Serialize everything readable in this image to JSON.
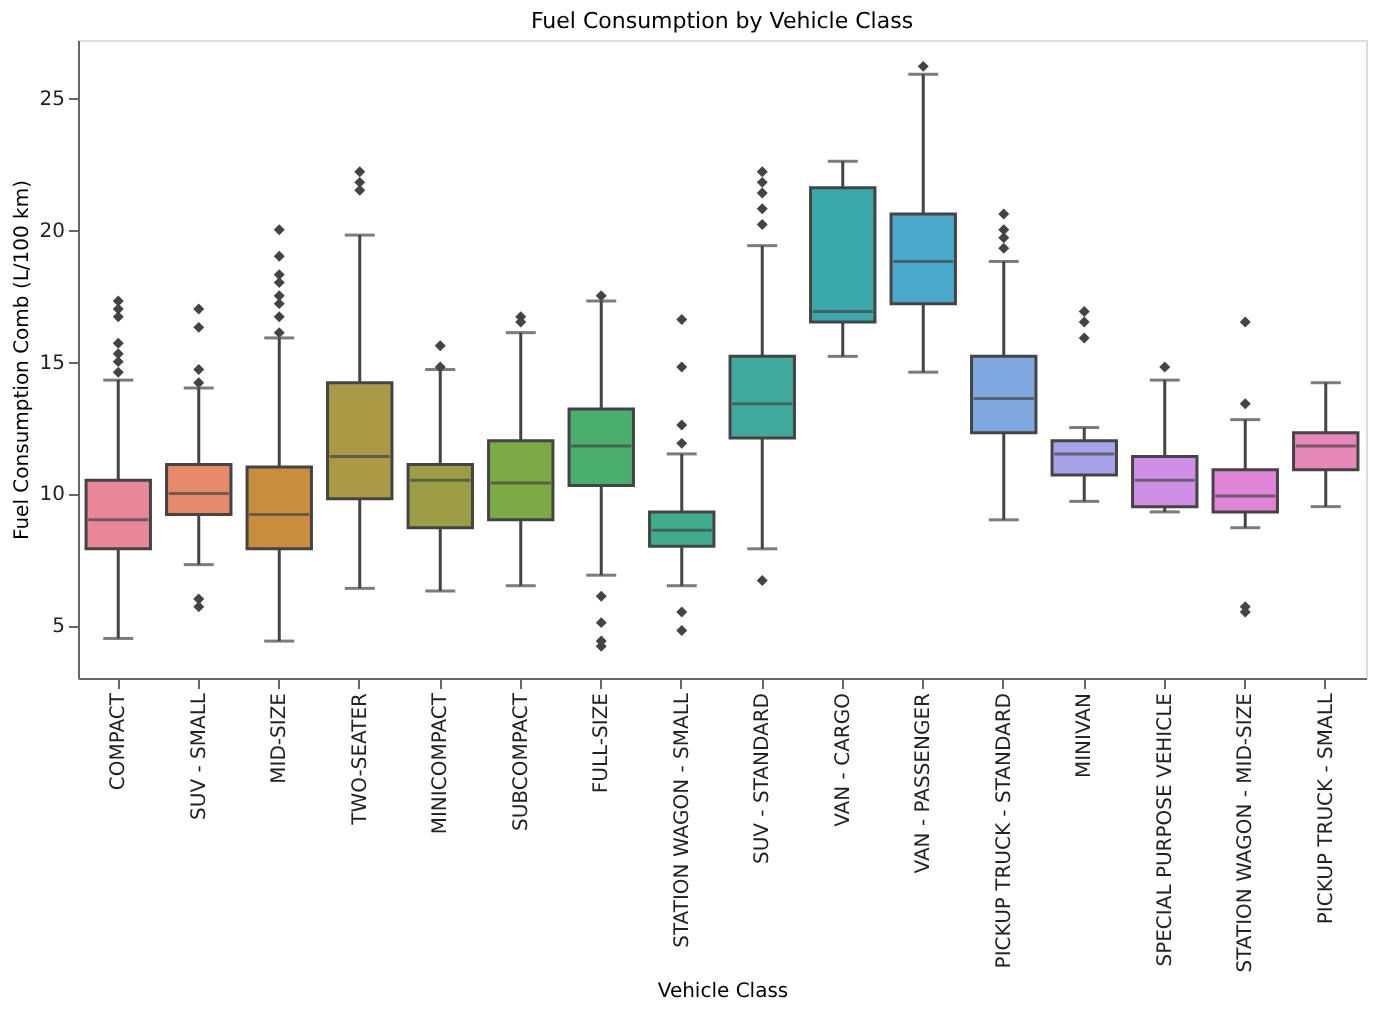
{
  "chart_data": {
    "type": "box",
    "title": "Fuel Consumption by Vehicle Class",
    "xlabel": "Vehicle Class",
    "ylabel": "Fuel Consumption Comb (L/100 km)",
    "categories": [
      "COMPACT",
      "SUV - SMALL",
      "MID-SIZE",
      "TWO-SEATER",
      "MINICOMPACT",
      "SUBCOMPACT",
      "FULL-SIZE",
      "STATION WAGON - SMALL",
      "SUV - STANDARD",
      "VAN - CARGO",
      "VAN - PASSENGER",
      "PICKUP TRUCK - STANDARD",
      "MINIVAN",
      "SPECIAL PURPOSE VEHICLE",
      "STATION WAGON - MID-SIZE",
      "PICKUP TRUCK - SMALL"
    ],
    "colors": [
      "#e8879a",
      "#e48a6b",
      "#c98d3e",
      "#aa9a45",
      "#9c9d44",
      "#7eaa45",
      "#4aae6c",
      "#3fad8c",
      "#40aa9d",
      "#3aa8aa",
      "#4aa8cc",
      "#80a8e0",
      "#a8a2e8",
      "#cf8fe6",
      "#e084d8",
      "#e888b8"
    ],
    "boxes": [
      {
        "low": 4.5,
        "q1": 7.9,
        "median": 9.0,
        "q3": 10.5,
        "high": 14.3,
        "outliers": [
          17.3,
          17.0,
          16.7,
          15.7,
          15.3,
          15.0,
          14.6
        ]
      },
      {
        "low": 7.3,
        "q1": 9.2,
        "median": 10.0,
        "q3": 11.1,
        "high": 14.0,
        "outliers": [
          17.0,
          16.3,
          14.7,
          14.2,
          6.0,
          5.7
        ]
      },
      {
        "low": 4.4,
        "q1": 7.9,
        "median": 9.2,
        "q3": 11.0,
        "high": 15.9,
        "outliers": [
          20.0,
          19.0,
          18.3,
          18.0,
          17.5,
          17.2,
          16.7,
          16.1
        ]
      },
      {
        "low": 6.4,
        "q1": 9.8,
        "median": 11.4,
        "q3": 14.2,
        "high": 19.8,
        "outliers": [
          22.2,
          21.8,
          21.5
        ]
      },
      {
        "low": 6.3,
        "q1": 8.7,
        "median": 10.5,
        "q3": 11.1,
        "high": 14.7,
        "outliers": [
          15.6,
          14.8
        ]
      },
      {
        "low": 6.5,
        "q1": 9.0,
        "median": 10.4,
        "q3": 12.0,
        "high": 16.1,
        "outliers": [
          16.7,
          16.5
        ]
      },
      {
        "low": 6.9,
        "q1": 10.3,
        "median": 11.8,
        "q3": 13.2,
        "high": 17.3,
        "outliers": [
          17.5,
          6.1,
          5.1,
          4.4,
          4.2
        ]
      },
      {
        "low": 6.5,
        "q1": 8.0,
        "median": 8.6,
        "q3": 9.3,
        "high": 11.5,
        "outliers": [
          16.6,
          14.8,
          12.6,
          11.9,
          5.5,
          4.8
        ]
      },
      {
        "low": 7.9,
        "q1": 12.1,
        "median": 13.4,
        "q3": 15.2,
        "high": 19.4,
        "outliers": [
          22.2,
          21.8,
          21.4,
          20.8,
          20.2,
          6.7
        ]
      },
      {
        "low": 15.2,
        "q1": 16.5,
        "median": 16.9,
        "q3": 21.6,
        "high": 22.6
      },
      {
        "low": 14.6,
        "q1": 17.2,
        "median": 18.8,
        "q3": 20.6,
        "high": 25.9,
        "outliers": [
          26.2
        ]
      },
      {
        "low": 9.0,
        "q1": 12.3,
        "median": 13.6,
        "q3": 15.2,
        "high": 18.8,
        "outliers": [
          20.6,
          20.0,
          19.7,
          19.3
        ]
      },
      {
        "low": 9.7,
        "q1": 10.7,
        "median": 11.5,
        "q3": 12.0,
        "high": 12.5,
        "outliers": [
          16.9,
          16.5,
          15.9
        ]
      },
      {
        "low": 9.3,
        "q1": 9.5,
        "median": 10.5,
        "q3": 11.4,
        "high": 14.3,
        "outliers": [
          14.8
        ]
      },
      {
        "low": 8.7,
        "q1": 9.3,
        "median": 9.9,
        "q3": 10.9,
        "high": 12.8,
        "outliers": [
          16.5,
          13.4,
          5.7,
          5.5
        ]
      },
      {
        "low": 9.5,
        "q1": 10.9,
        "median": 11.8,
        "q3": 12.3,
        "high": 14.2
      }
    ],
    "ylim": [
      3.0,
      27.2
    ],
    "yticks": [
      5,
      10,
      15,
      20,
      25
    ],
    "grid": false,
    "legend": false
  }
}
